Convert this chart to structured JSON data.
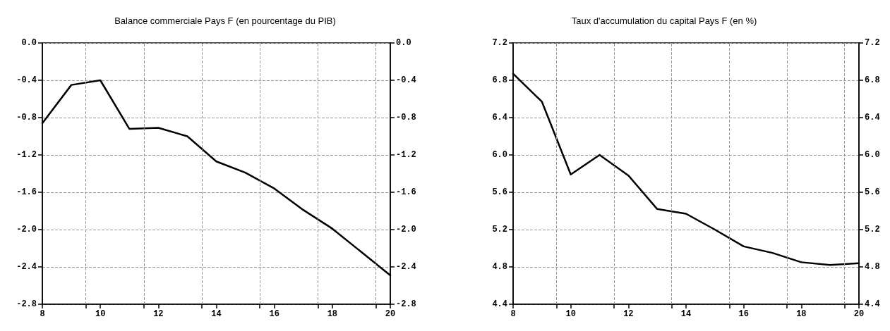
{
  "chart_data": [
    {
      "type": "line",
      "title": "Balance commerciale Pays F (en pourcentage du PIB)",
      "x": [
        8,
        9,
        10,
        11,
        12,
        13,
        14,
        15,
        16,
        17,
        18,
        19,
        20
      ],
      "series": [
        {
          "color": "#000000",
          "values": [
            -0.86,
            -0.45,
            -0.4,
            -0.92,
            -0.91,
            -1.0,
            -1.27,
            -1.39,
            -1.56,
            -1.79,
            -1.99,
            -2.24,
            -2.49
          ]
        }
      ],
      "xlim": [
        8,
        20
      ],
      "xticks": [
        8,
        {
          "value": 9.5,
          "label": null
        },
        10,
        {
          "value": 11.5,
          "label": null
        },
        12,
        {
          "value": 13.5,
          "label": null
        },
        14,
        {
          "value": 15.5,
          "label": null
        },
        16,
        {
          "value": 17.5,
          "label": null
        },
        18,
        {
          "value": 19.5,
          "label": null
        },
        20
      ],
      "ylim": [
        -2.8,
        0.0
      ],
      "yticks": [
        {
          "value": -2.8,
          "label": "-2.8"
        },
        {
          "value": -2.4,
          "label": "-2.4"
        },
        {
          "value": -2.0,
          "label": "-2.0"
        },
        {
          "value": -1.6,
          "label": "-1.6"
        },
        {
          "value": -1.2,
          "label": "-1.2"
        },
        {
          "value": -0.8,
          "label": "-0.8"
        },
        {
          "value": -0.4,
          "label": "-0.4"
        },
        {
          "value": 0.0,
          "label": "0.0"
        }
      ],
      "y2lim": [
        -2.8,
        0.0
      ],
      "y2ticks": [
        {
          "value": -2.8,
          "label": "-2.8"
        },
        {
          "value": -2.4,
          "label": "-2.4"
        },
        {
          "value": -2.0,
          "label": "-2.0"
        },
        {
          "value": -1.6,
          "label": "-1.6"
        },
        {
          "value": -1.2,
          "label": "-1.2"
        },
        {
          "value": -0.8,
          "label": "-0.8"
        },
        {
          "value": -0.4,
          "label": "-0.4"
        },
        {
          "value": 0.0,
          "label": "0.0"
        }
      ],
      "grid": true,
      "marker": "none",
      "line_style": "solid"
    },
    {
      "type": "line",
      "title": "Taux d'accumulation du capital Pays F (en %)",
      "x": [
        8,
        9,
        10,
        11,
        12,
        13,
        14,
        15,
        16,
        17,
        18,
        19,
        20
      ],
      "series": [
        {
          "color": "#000000",
          "values": [
            6.87,
            6.57,
            5.79,
            6.0,
            5.78,
            5.42,
            5.37,
            5.2,
            5.02,
            4.95,
            4.85,
            4.82,
            4.84
          ]
        }
      ],
      "xlim": [
        8,
        20
      ],
      "xticks": [
        8,
        {
          "value": 9.5,
          "label": null
        },
        10,
        {
          "value": 11.5,
          "label": null
        },
        12,
        {
          "value": 13.5,
          "label": null
        },
        14,
        {
          "value": 15.5,
          "label": null
        },
        16,
        {
          "value": 17.5,
          "label": null
        },
        18,
        {
          "value": 19.5,
          "label": null
        },
        20
      ],
      "ylim": [
        4.4,
        7.2
      ],
      "yticks": [
        {
          "value": 4.4,
          "label": "4.4"
        },
        {
          "value": 4.8,
          "label": "4.8"
        },
        {
          "value": 5.2,
          "label": "5.2"
        },
        {
          "value": 5.6,
          "label": "5.6"
        },
        {
          "value": 6.0,
          "label": "6.0"
        },
        {
          "value": 6.4,
          "label": "6.4"
        },
        {
          "value": 6.8,
          "label": "6.8"
        },
        {
          "value": 7.2,
          "label": "7.2"
        }
      ],
      "y2lim": [
        4.4,
        7.2
      ],
      "y2ticks": [
        {
          "value": 4.4,
          "label": "4.4"
        },
        {
          "value": 4.8,
          "label": "4.8"
        },
        {
          "value": 5.2,
          "label": "5.2"
        },
        {
          "value": 5.6,
          "label": "5.6"
        },
        {
          "value": 6.0,
          "label": "6.0"
        },
        {
          "value": 6.4,
          "label": "6.4"
        },
        {
          "value": 6.8,
          "label": "6.8"
        },
        {
          "value": 7.2,
          "label": "7.2"
        }
      ],
      "grid": true,
      "marker": "none",
      "line_style": "solid"
    }
  ]
}
